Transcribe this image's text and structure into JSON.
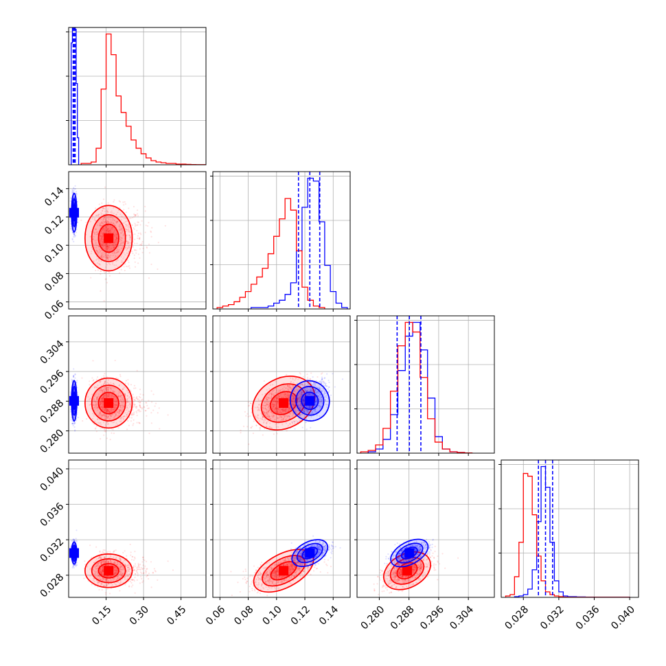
{
  "chart_data": {
    "type": "corner",
    "series_colors": {
      "red": "#ff0000",
      "blue": "#0000ff"
    },
    "grid": true,
    "parameters": [
      {
        "ticks": [
          0.15,
          0.3,
          0.45
        ],
        "tick_labels": [
          "0.15",
          "0.30",
          "0.45"
        ],
        "range": [
          0.0,
          0.55
        ]
      },
      {
        "ticks": [
          0.06,
          0.08,
          0.1,
          0.12,
          0.14
        ],
        "tick_labels": [
          "0.06",
          "0.08",
          "0.10",
          "0.12",
          "0.14"
        ],
        "range": [
          0.055,
          0.152
        ]
      },
      {
        "ticks": [
          0.28,
          0.288,
          0.296,
          0.304
        ],
        "tick_labels": [
          "0.280",
          "0.288",
          "0.296",
          "0.304"
        ],
        "range": [
          0.274,
          0.311
        ]
      },
      {
        "ticks": [
          0.028,
          0.032,
          0.036,
          0.04
        ],
        "tick_labels": [
          "0.028",
          "0.032",
          "0.036",
          "0.040"
        ],
        "range": [
          0.0255,
          0.041
        ]
      }
    ],
    "blue_quantile_lines": [
      [
        0.018,
        0.022,
        0.026
      ],
      [
        0.1155,
        0.1235,
        0.1305
      ],
      [
        0.2848,
        0.2881,
        0.2912
      ],
      [
        0.0297,
        0.0305,
        0.0313
      ]
    ],
    "red_histograms": [
      {
        "bin_edges": [
          0.05,
          0.07,
          0.09,
          0.11,
          0.13,
          0.15,
          0.17,
          0.19,
          0.21,
          0.23,
          0.25,
          0.27,
          0.29,
          0.31,
          0.33,
          0.35,
          0.37,
          0.39,
          0.41,
          0.43,
          0.45,
          0.47,
          0.49,
          0.51,
          0.53,
          0.55
        ],
        "counts": [
          1,
          1,
          2,
          12,
          55,
          95,
          80,
          50,
          38,
          28,
          18,
          12,
          8,
          5,
          3,
          2,
          1.5,
          1,
          1,
          0.5,
          0.5,
          0.3,
          0.2,
          0.1,
          0.1
        ]
      },
      {
        "bin_edges": [
          0.058,
          0.062,
          0.066,
          0.07,
          0.074,
          0.078,
          0.082,
          0.086,
          0.09,
          0.094,
          0.098,
          0.102,
          0.106,
          0.11,
          0.114,
          0.118,
          0.122,
          0.126,
          0.13,
          0.134
        ],
        "counts": [
          1,
          2,
          3,
          5,
          8,
          12,
          17,
          22,
          28,
          38,
          50,
          62,
          76,
          68,
          40,
          15,
          6,
          2,
          1
        ]
      },
      {
        "bin_edges": [
          0.275,
          0.277,
          0.279,
          0.281,
          0.283,
          0.285,
          0.287,
          0.289,
          0.291,
          0.293,
          0.295,
          0.297,
          0.299,
          0.301,
          0.303,
          0.305
        ],
        "counts": [
          1,
          2,
          6,
          18,
          45,
          78,
          95,
          88,
          55,
          25,
          8,
          3,
          1,
          0.5,
          0.2
        ]
      },
      {
        "bin_edges": [
          0.026,
          0.0265,
          0.027,
          0.0275,
          0.028,
          0.0285,
          0.029,
          0.0295,
          0.03,
          0.0305,
          0.031,
          0.0315,
          0.032,
          0.0325,
          0.033,
          0.034,
          0.035,
          0.036,
          0.037,
          0.038,
          0.039,
          0.04
        ],
        "counts": [
          1,
          2,
          15,
          40,
          90,
          88,
          60,
          30,
          12,
          4,
          2,
          1,
          0.5,
          0.2,
          0.1,
          0.1,
          0.1,
          0.1,
          0.1,
          0.1,
          0.1
        ]
      }
    ],
    "blue_histograms": [
      {
        "bin_edges": [
          0.01,
          0.015,
          0.02,
          0.025,
          0.03,
          0.035,
          0.04
        ],
        "counts": [
          180,
          240,
          260,
          200,
          120,
          40
        ]
      },
      {
        "bin_edges": [
          0.082,
          0.086,
          0.09,
          0.094,
          0.098,
          0.102,
          0.106,
          0.11,
          0.114,
          0.118,
          0.122,
          0.126,
          0.13,
          0.134,
          0.138,
          0.142,
          0.146,
          0.15
        ],
        "counts": [
          1,
          1,
          1,
          2,
          4,
          6,
          10,
          18,
          40,
          70,
          90,
          88,
          60,
          30,
          12,
          4,
          1
        ]
      },
      {
        "bin_edges": [
          0.277,
          0.279,
          0.281,
          0.283,
          0.285,
          0.287,
          0.289,
          0.291,
          0.293,
          0.295,
          0.297,
          0.299,
          0.301,
          0.303
        ],
        "counts": [
          1,
          3,
          10,
          28,
          60,
          85,
          95,
          75,
          40,
          12,
          3,
          1,
          0.5
        ]
      },
      {
        "bin_edges": [
          0.027,
          0.0275,
          0.028,
          0.0285,
          0.029,
          0.0295,
          0.03,
          0.0305,
          0.031,
          0.0315,
          0.032,
          0.0325,
          0.033,
          0.034,
          0.035,
          0.036,
          0.04
        ],
        "counts": [
          0.5,
          1,
          2,
          6,
          20,
          55,
          95,
          80,
          40,
          12,
          4,
          1,
          0.5,
          0.3,
          0.2,
          0.1
        ]
      }
    ],
    "red_2d_peaks": {
      "1_0": [
        0.16,
        0.105
      ],
      "2_0": [
        0.16,
        0.2875
      ],
      "3_0": [
        0.16,
        0.0285
      ],
      "2_1": [
        0.105,
        0.2875
      ],
      "3_1": [
        0.105,
        0.0285
      ],
      "3_2": [
        0.2875,
        0.0285
      ]
    },
    "blue_2d_peaks": {
      "1_0": [
        0.022,
        0.123
      ],
      "2_0": [
        0.022,
        0.2881
      ],
      "3_0": [
        0.022,
        0.0305
      ],
      "2_1": [
        0.1235,
        0.2881
      ],
      "3_1": [
        0.1235,
        0.0305
      ],
      "3_2": [
        0.2881,
        0.0305
      ]
    }
  }
}
